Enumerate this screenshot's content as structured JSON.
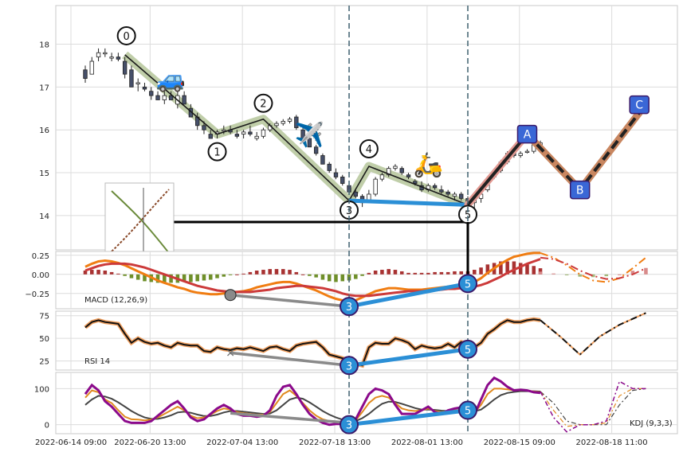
{
  "chart_data": {
    "type": "candlestick",
    "colors": {
      "grid": "#dcdcdc",
      "frame": "#c8c8c8",
      "candle_up": "#ffffff",
      "candle_down": "#46506a",
      "wave": "#b5c59a",
      "wave_line": "#1a1a1a",
      "divergence": "#2b8fd6",
      "divergence_gray": "#8a8a8a",
      "abc_outer": "#c88660",
      "abc_inner": "#222222",
      "abc_first": "#e39a93",
      "label_box": "#3a67d6",
      "macd_line": "#f07d12",
      "signal_line": "#cc3a3a",
      "hist_pos": "#a83232",
      "hist_neg": "#6f8f2a",
      "rsi_line": "#111111",
      "rsi_glow": "#f0a060",
      "k_line": "#e08a20",
      "d_line": "#444444",
      "j_line": "#8b0a8b"
    },
    "x_tick_labels": [
      "2022-06-14 09:00",
      "2022-06-20 13:00",
      "2022-07-04 13:00",
      "2022-07-18 13:00",
      "2022-08-01 13:00",
      "2022-08-15 09:00",
      "2022-08-18 11:00"
    ],
    "x_tick_positions": [
      0,
      12,
      26,
      40,
      54,
      68,
      82
    ],
    "price_panel": {
      "ylim": [
        13.2,
        18.9
      ],
      "yticks": [
        14,
        15,
        16,
        17,
        18
      ],
      "ohlc": [
        [
          17.4,
          17.5,
          17.1,
          17.2
        ],
        [
          17.3,
          17.7,
          17.3,
          17.6
        ],
        [
          17.7,
          17.9,
          17.6,
          17.8
        ],
        [
          17.8,
          17.9,
          17.7,
          17.8
        ],
        [
          17.7,
          17.8,
          17.6,
          17.7
        ],
        [
          17.7,
          17.8,
          17.6,
          17.65
        ],
        [
          17.6,
          17.7,
          17.2,
          17.3
        ],
        [
          17.4,
          17.5,
          17.0,
          17.0
        ],
        [
          17.1,
          17.2,
          16.9,
          17.1
        ],
        [
          17.0,
          17.1,
          16.9,
          16.95
        ],
        [
          16.9,
          17.0,
          16.7,
          16.8
        ],
        [
          16.8,
          16.9,
          16.7,
          16.7
        ],
        [
          16.7,
          16.9,
          16.6,
          16.8
        ],
        [
          16.8,
          16.9,
          16.7,
          16.7
        ],
        [
          16.6,
          16.9,
          16.5,
          16.8
        ],
        [
          16.8,
          16.9,
          16.6,
          16.6
        ],
        [
          16.5,
          16.6,
          16.3,
          16.3
        ],
        [
          16.3,
          16.4,
          16.0,
          16.1
        ],
        [
          16.1,
          16.2,
          15.9,
          16.0
        ],
        [
          15.9,
          16.0,
          15.8,
          15.8
        ],
        [
          15.9,
          16.0,
          15.8,
          15.95
        ],
        [
          16.0,
          16.1,
          15.9,
          16.0
        ],
        [
          16.0,
          16.1,
          15.9,
          15.95
        ],
        [
          15.9,
          16.0,
          15.8,
          15.85
        ],
        [
          15.9,
          16.0,
          15.8,
          15.95
        ],
        [
          15.95,
          16.1,
          15.85,
          15.9
        ],
        [
          15.8,
          15.95,
          15.75,
          15.85
        ],
        [
          15.85,
          16.05,
          15.8,
          16.0
        ],
        [
          16.0,
          16.15,
          15.95,
          16.1
        ],
        [
          16.1,
          16.2,
          16.05,
          16.15
        ],
        [
          16.15,
          16.25,
          16.1,
          16.2
        ],
        [
          16.2,
          16.3,
          16.15,
          16.25
        ],
        [
          16.3,
          16.35,
          16.0,
          16.05
        ],
        [
          16.0,
          16.05,
          15.8,
          15.8
        ],
        [
          15.8,
          15.85,
          15.6,
          15.6
        ],
        [
          15.6,
          15.65,
          15.4,
          15.45
        ],
        [
          15.4,
          15.45,
          15.2,
          15.2
        ],
        [
          15.2,
          15.25,
          15.0,
          15.05
        ],
        [
          15.0,
          15.1,
          14.85,
          14.9
        ],
        [
          14.9,
          14.95,
          14.7,
          14.75
        ],
        [
          14.7,
          14.75,
          14.5,
          14.55
        ],
        [
          14.55,
          14.6,
          14.4,
          14.45
        ],
        [
          14.45,
          14.5,
          14.2,
          14.3
        ],
        [
          14.35,
          14.6,
          14.3,
          14.5
        ],
        [
          14.5,
          14.9,
          14.45,
          14.85
        ],
        [
          14.85,
          15.0,
          14.8,
          14.95
        ],
        [
          14.95,
          15.15,
          14.9,
          15.1
        ],
        [
          15.1,
          15.2,
          15.05,
          15.15
        ],
        [
          15.1,
          15.15,
          14.95,
          15.0
        ],
        [
          14.95,
          15.0,
          14.85,
          14.9
        ],
        [
          14.8,
          14.85,
          14.7,
          14.75
        ],
        [
          14.7,
          14.8,
          14.55,
          14.6
        ],
        [
          14.6,
          14.75,
          14.55,
          14.7
        ],
        [
          14.7,
          14.75,
          14.6,
          14.65
        ],
        [
          14.6,
          14.7,
          14.5,
          14.55
        ],
        [
          14.55,
          14.6,
          14.45,
          14.5
        ],
        [
          14.45,
          14.55,
          14.35,
          14.5
        ],
        [
          14.5,
          14.55,
          14.35,
          14.4
        ],
        [
          14.4,
          14.45,
          14.25,
          14.3
        ],
        [
          14.3,
          14.5,
          14.1,
          14.4
        ],
        [
          14.4,
          14.55,
          14.3,
          14.5
        ],
        [
          14.6,
          14.9,
          14.55,
          14.85
        ],
        [
          14.9,
          15.1,
          14.85,
          15.05
        ],
        [
          15.05,
          15.3,
          15.0,
          15.25
        ],
        [
          15.25,
          15.5,
          15.2,
          15.45
        ],
        [
          15.45,
          15.5,
          15.35,
          15.4
        ],
        [
          15.4,
          15.5,
          15.35,
          15.45
        ],
        [
          15.5,
          15.55,
          15.45,
          15.5
        ],
        [
          15.5,
          15.7,
          15.45,
          15.65
        ],
        [
          15.65,
          15.75,
          15.6,
          15.7
        ]
      ],
      "wave_points": [
        {
          "label": "0",
          "x": 6,
          "y": 17.75
        },
        {
          "label": "1",
          "x": 20,
          "y": 15.9
        },
        {
          "label": "2",
          "x": 27,
          "y": 16.25
        },
        {
          "label": "3",
          "x": 40,
          "y": 14.35
        },
        {
          "label": "4",
          "x": 43,
          "y": 15.15
        },
        {
          "label": "5",
          "x": 58,
          "y": 14.25
        }
      ],
      "abc_points": [
        {
          "label": "5",
          "x": 58,
          "y": 14.25
        },
        {
          "label": "A",
          "x": 67,
          "y": 15.9
        },
        {
          "label": "B",
          "x": 75,
          "y": 14.6
        },
        {
          "label": "C",
          "x": 84,
          "y": 16.4
        }
      ],
      "divergence_line": [
        {
          "x": 40,
          "y": 14.35
        },
        {
          "x": 58,
          "y": 14.25
        }
      ],
      "vertical_markers": [
        40,
        58
      ],
      "box_line": {
        "x1": 4,
        "x2": 58,
        "y": 13.85
      },
      "emoji": [
        {
          "char": "🚙",
          "x": 13,
          "y": 17.0
        },
        {
          "char": "✈️",
          "x": 34,
          "y": 15.7
        },
        {
          "char": "🛵",
          "x": 52,
          "y": 15.0
        }
      ]
    },
    "macd_panel": {
      "label": "MACD (12,26,9)",
      "ylim": [
        -0.45,
        0.3
      ],
      "yticks": [
        0.25,
        0.0,
        -0.25
      ],
      "ytick_labels": [
        "0.25",
        "0.00",
        "−0.25"
      ],
      "macd": [
        0.1,
        0.14,
        0.17,
        0.18,
        0.17,
        0.15,
        0.12,
        0.08,
        0.04,
        0.0,
        -0.04,
        -0.08,
        -0.11,
        -0.14,
        -0.17,
        -0.19,
        -0.22,
        -0.24,
        -0.25,
        -0.26,
        -0.26,
        -0.25,
        -0.24,
        -0.23,
        -0.22,
        -0.2,
        -0.17,
        -0.15,
        -0.13,
        -0.11,
        -0.1,
        -0.1,
        -0.12,
        -0.15,
        -0.18,
        -0.21,
        -0.25,
        -0.29,
        -0.32,
        -0.34,
        -0.35,
        -0.34,
        -0.3,
        -0.26,
        -0.22,
        -0.2,
        -0.18,
        -0.18,
        -0.19,
        -0.2,
        -0.2,
        -0.2,
        -0.19,
        -0.18,
        -0.17,
        -0.16,
        -0.15,
        -0.14,
        -0.13,
        -0.1,
        -0.05,
        0.02,
        0.08,
        0.14,
        0.19,
        0.23,
        0.25,
        0.27,
        0.28,
        0.28
      ],
      "signal": [
        0.05,
        0.08,
        0.11,
        0.13,
        0.14,
        0.14,
        0.14,
        0.13,
        0.11,
        0.09,
        0.06,
        0.03,
        0.0,
        -0.03,
        -0.06,
        -0.09,
        -0.12,
        -0.15,
        -0.17,
        -0.19,
        -0.21,
        -0.22,
        -0.23,
        -0.23,
        -0.23,
        -0.23,
        -0.22,
        -0.21,
        -0.2,
        -0.18,
        -0.17,
        -0.16,
        -0.15,
        -0.15,
        -0.16,
        -0.17,
        -0.18,
        -0.2,
        -0.22,
        -0.25,
        -0.27,
        -0.28,
        -0.28,
        -0.28,
        -0.27,
        -0.26,
        -0.25,
        -0.24,
        -0.23,
        -0.22,
        -0.22,
        -0.22,
        -0.21,
        -0.21,
        -0.2,
        -0.19,
        -0.19,
        -0.18,
        -0.17,
        -0.16,
        -0.14,
        -0.11,
        -0.07,
        -0.03,
        0.02,
        0.06,
        0.1,
        0.14,
        0.17,
        0.2
      ],
      "projection_x": [
        69,
        71,
        73,
        75,
        77,
        79,
        81,
        83,
        85
      ],
      "projection_macd": [
        0.28,
        0.22,
        0.12,
        0.0,
        -0.08,
        -0.1,
        -0.05,
        0.08,
        0.22
      ],
      "projection_signal": [
        0.22,
        0.2,
        0.14,
        0.05,
        -0.02,
        -0.06,
        -0.05,
        0.0,
        0.08
      ],
      "divergence_gray": [
        {
          "x": 22,
          "y": -0.27
        },
        {
          "x": 40,
          "y": -0.42
        }
      ],
      "divergence_blue": [
        {
          "x": 40,
          "y": -0.42
        },
        {
          "x": 58,
          "y": -0.12
        }
      ]
    },
    "rsi_panel": {
      "label": "RSI 14",
      "ylim": [
        15,
        80
      ],
      "yticks": [
        75,
        50,
        25
      ],
      "rsi": [
        62,
        68,
        70,
        68,
        67,
        66,
        55,
        45,
        50,
        46,
        44,
        45,
        42,
        40,
        45,
        43,
        42,
        42,
        36,
        35,
        40,
        38,
        37,
        39,
        38,
        40,
        38,
        36,
        40,
        41,
        38,
        36,
        42,
        44,
        45,
        46,
        40,
        32,
        30,
        28,
        26,
        22,
        20,
        40,
        45,
        44,
        44,
        50,
        48,
        45,
        38,
        42,
        40,
        39,
        40,
        44,
        40,
        46,
        44,
        40,
        45,
        55,
        60,
        66,
        70,
        68,
        68,
        70,
        71,
        70
      ],
      "projection_x": [
        69,
        72,
        75,
        78,
        81,
        85
      ],
      "projection_rsi": [
        70,
        52,
        32,
        52,
        65,
        78
      ],
      "divergence_gray": [
        {
          "x": 22,
          "y": 34
        },
        {
          "x": 40,
          "y": 20
        }
      ],
      "divergence_blue": [
        {
          "x": 40,
          "y": 20
        },
        {
          "x": 58,
          "y": 38
        }
      ]
    },
    "kdj_panel": {
      "label": "KDJ (9,3,3)",
      "ylim": [
        -25,
        145
      ],
      "yticks": [
        100,
        0
      ],
      "k": [
        75,
        95,
        90,
        70,
        60,
        40,
        22,
        15,
        14,
        12,
        14,
        20,
        30,
        40,
        50,
        40,
        25,
        18,
        20,
        28,
        38,
        45,
        42,
        35,
        32,
        30,
        28,
        28,
        35,
        60,
        85,
        95,
        80,
        60,
        40,
        25,
        15,
        10,
        8,
        8,
        9,
        12,
        35,
        60,
        75,
        80,
        75,
        60,
        45,
        40,
        38,
        40,
        45,
        38,
        35,
        38,
        40,
        42,
        38,
        34,
        55,
        85,
        100,
        100,
        98,
        95,
        96,
        95,
        92,
        90
      ],
      "d": [
        55,
        70,
        80,
        78,
        72,
        62,
        50,
        38,
        28,
        20,
        16,
        16,
        20,
        26,
        34,
        36,
        33,
        28,
        24,
        24,
        28,
        34,
        38,
        38,
        36,
        34,
        32,
        30,
        31,
        40,
        55,
        70,
        75,
        72,
        62,
        50,
        38,
        28,
        20,
        14,
        11,
        10,
        18,
        30,
        45,
        58,
        64,
        63,
        58,
        52,
        46,
        42,
        42,
        41,
        39,
        38,
        38,
        39,
        39,
        37,
        42,
        55,
        70,
        82,
        88,
        91,
        93,
        93,
        93,
        92
      ],
      "j": [
        85,
        110,
        95,
        65,
        50,
        30,
        10,
        5,
        5,
        5,
        10,
        25,
        40,
        55,
        65,
        45,
        20,
        10,
        15,
        30,
        45,
        55,
        45,
        30,
        25,
        25,
        22,
        25,
        40,
        80,
        105,
        110,
        85,
        55,
        30,
        15,
        5,
        0,
        2,
        2,
        5,
        15,
        50,
        85,
        100,
        95,
        85,
        55,
        30,
        30,
        30,
        40,
        50,
        35,
        30,
        40,
        45,
        48,
        35,
        28,
        70,
        110,
        130,
        120,
        105,
        95,
        97,
        95,
        90,
        88
      ],
      "projection_x": [
        69,
        71,
        73,
        75,
        77,
        79,
        81,
        83,
        85
      ],
      "projection_k": [
        92,
        40,
        -5,
        0,
        0,
        5,
        80,
        100,
        100
      ],
      "projection_d": [
        92,
        60,
        10,
        0,
        0,
        0,
        55,
        95,
        100
      ],
      "projection_j": [
        92,
        20,
        -20,
        0,
        0,
        10,
        120,
        100,
        100
      ],
      "divergence_gray": [
        {
          "x": 22,
          "y": 32
        },
        {
          "x": 40,
          "y": 5
        }
      ],
      "divergence_blue": [
        {
          "x": 40,
          "y": 0
        },
        {
          "x": 58,
          "y": 40
        }
      ]
    }
  }
}
